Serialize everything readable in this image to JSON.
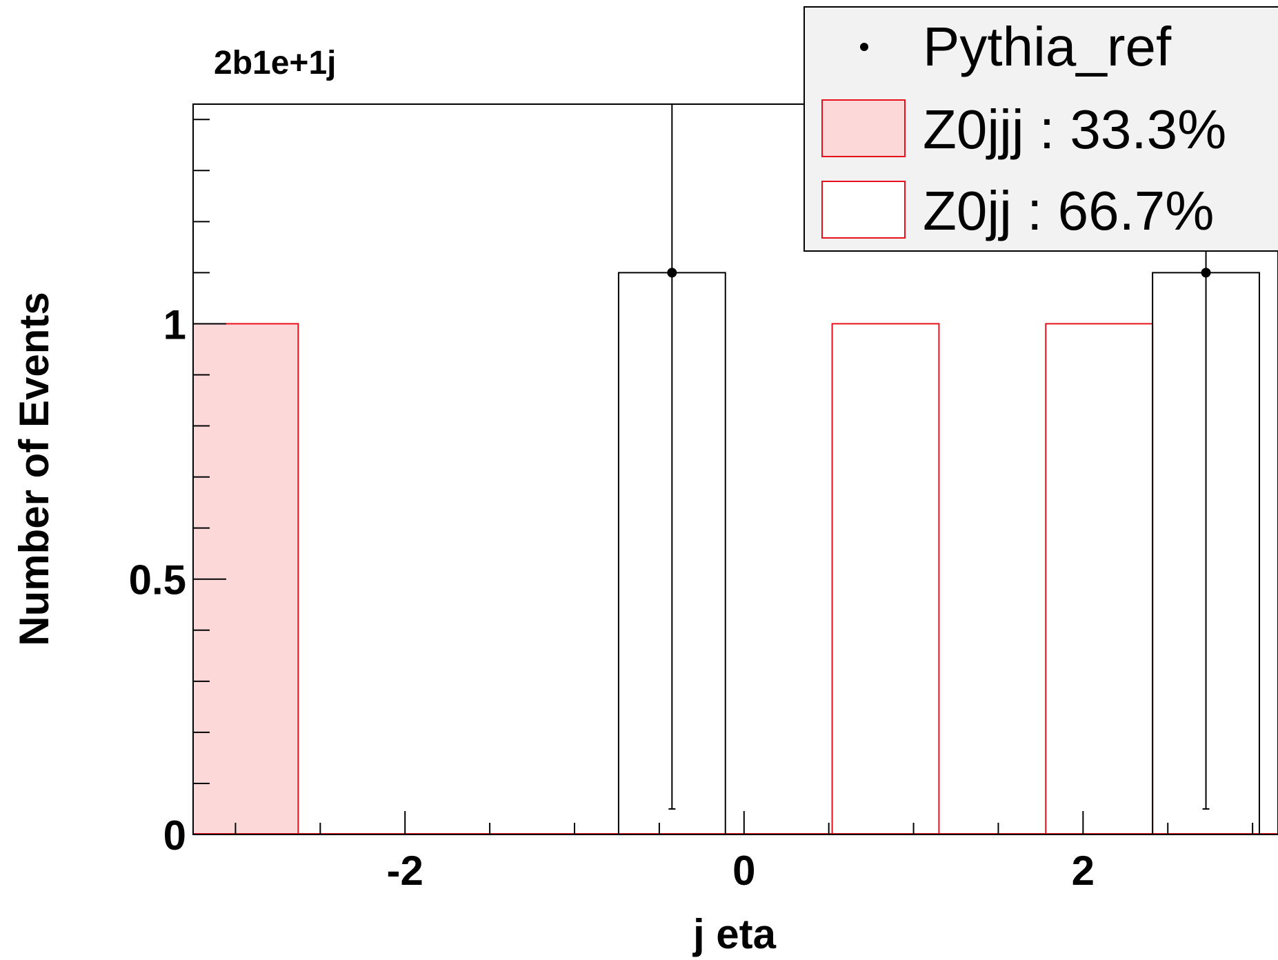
{
  "chart_data": {
    "type": "bar",
    "title": "2b1e+1j",
    "xlabel": "j eta",
    "ylabel": "Number of Events",
    "xlim": [
      -3.25,
      3.15
    ],
    "ylim": [
      0,
      1.43
    ],
    "x_ticks": [
      {
        "value": -2,
        "label": "-2"
      },
      {
        "value": 0,
        "label": "0"
      },
      {
        "value": 2,
        "label": "2"
      }
    ],
    "y_ticks": [
      {
        "value": 0,
        "label": "0"
      },
      {
        "value": 0.5,
        "label": "0.5"
      },
      {
        "value": 1,
        "label": "1"
      }
    ],
    "bin_edges": [
      -3.26,
      -2.63,
      -2.0,
      -1.37,
      -0.74,
      -0.11,
      0.52,
      1.15,
      1.78,
      2.41,
      3.04
    ],
    "stack": [
      {
        "name": "Z0jjj : 33.3%",
        "values": [
          1,
          0,
          0,
          0,
          0,
          0,
          0,
          0,
          0,
          0
        ],
        "fill": "#fdd8d8",
        "stroke": "#e8101a"
      },
      {
        "name": "Z0jj : 66.7%",
        "values": [
          0,
          0,
          0,
          0,
          0,
          0,
          1,
          0,
          1,
          0
        ],
        "fill": "#ffffff",
        "stroke": "#e8101a"
      }
    ],
    "reference": {
      "name": "Pythia_ref",
      "bins": [
        {
          "bin": 4,
          "x": -0.425,
          "y": 1.1,
          "err_low": 1.05,
          "err_high": 1.45
        },
        {
          "bin": 9,
          "x": 2.725,
          "y": 1.1,
          "err_low": 1.05,
          "err_high": 1.45
        }
      ],
      "outline_values": [
        0,
        0,
        0,
        0,
        1.1,
        0,
        0,
        0,
        0,
        1.1
      ],
      "color": "#000000"
    },
    "legend": {
      "position": "top-right",
      "background": "#f2f2f2",
      "entries": [
        {
          "label": "Pythia_ref",
          "symbol": "marker"
        },
        {
          "label": "Z0jjj : 33.3%",
          "symbol": "filled-box"
        },
        {
          "label": "Z0jj : 66.7%",
          "symbol": "empty-box"
        }
      ]
    },
    "grid": false
  }
}
